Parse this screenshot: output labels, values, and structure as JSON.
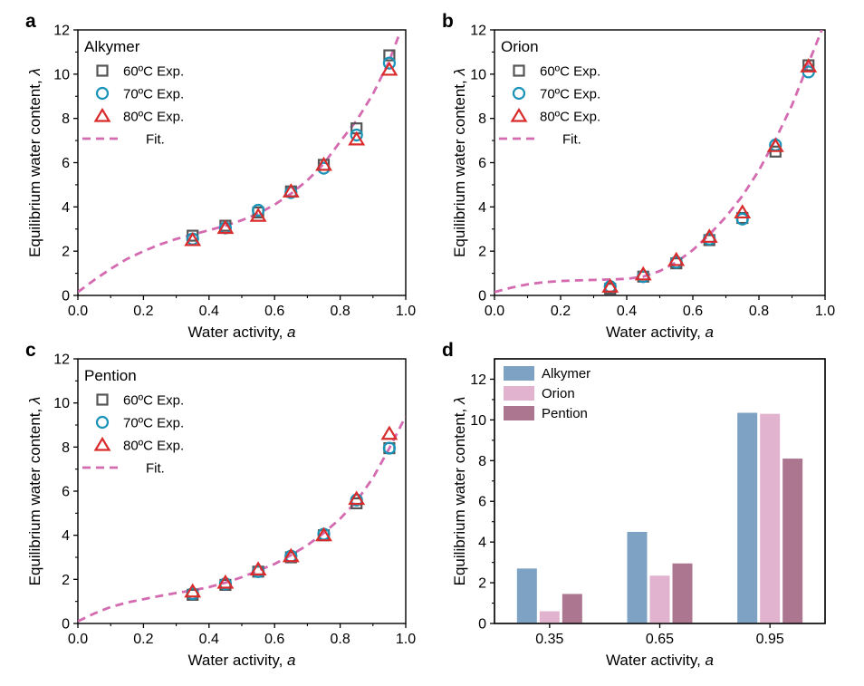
{
  "colors": {
    "exp_60": "#555555",
    "exp_70": "#1a93b8",
    "exp_80": "#d92b2b",
    "fit": "#d46bb0",
    "bar_alkymer": "#7da2c4",
    "bar_orion": "#e2b3cf",
    "bar_pention": "#ad7690"
  },
  "chart_data": [
    {
      "id": "a",
      "type": "scatter",
      "panel_label": "a",
      "title": "Alkymer",
      "xlabel": "Water activity, ",
      "xlabel_var": "a",
      "ylabel": "Equilibrium water content, ",
      "ylabel_var": "λ",
      "xlim": [
        0,
        1.0
      ],
      "ylim": [
        0,
        12
      ],
      "xticks": [
        "0.0",
        "0.2",
        "0.4",
        "0.6",
        "0.8",
        "1.0"
      ],
      "yticks": [
        "0",
        "2",
        "4",
        "6",
        "8",
        "10",
        "12"
      ],
      "legend": [
        "60ºC Exp.",
        "70ºC Exp.",
        "80ºC Exp.",
        "Fit."
      ],
      "series": [
        {
          "name": "60ºC Exp.",
          "marker": "square",
          "x": [
            0.35,
            0.45,
            0.55,
            0.65,
            0.75,
            0.85,
            0.95
          ],
          "y": [
            2.7,
            3.15,
            3.75,
            4.7,
            5.9,
            7.55,
            10.85
          ]
        },
        {
          "name": "70ºC Exp.",
          "marker": "circle",
          "x": [
            0.35,
            0.45,
            0.55,
            0.65,
            0.75,
            0.85,
            0.95
          ],
          "y": [
            2.55,
            3.05,
            3.85,
            4.65,
            5.75,
            7.25,
            10.5
          ]
        },
        {
          "name": "80ºC Exp.",
          "marker": "triangle",
          "x": [
            0.35,
            0.45,
            0.55,
            0.65,
            0.75,
            0.85,
            0.95
          ],
          "y": [
            2.5,
            3.05,
            3.6,
            4.7,
            5.9,
            7.05,
            10.2
          ]
        }
      ],
      "fit": {
        "name": "Fit.",
        "x": [
          0,
          0.05,
          0.1,
          0.15,
          0.2,
          0.25,
          0.3,
          0.35,
          0.4,
          0.45,
          0.5,
          0.55,
          0.6,
          0.65,
          0.7,
          0.75,
          0.8,
          0.85,
          0.9,
          0.95,
          0.98
        ],
        "y": [
          0.15,
          0.7,
          1.2,
          1.65,
          2.0,
          2.3,
          2.55,
          2.75,
          2.95,
          3.15,
          3.4,
          3.7,
          4.1,
          4.6,
          5.2,
          5.95,
          6.95,
          7.9,
          9.1,
          10.6,
          11.8
        ]
      }
    },
    {
      "id": "b",
      "type": "scatter",
      "panel_label": "b",
      "title": "Orion",
      "xlabel": "Water activity, ",
      "xlabel_var": "a",
      "ylabel": "Equilibrium water content, ",
      "ylabel_var": "λ",
      "xlim": [
        0,
        1.0
      ],
      "ylim": [
        0,
        12
      ],
      "xticks": [
        "0.0",
        "0.2",
        "0.4",
        "0.6",
        "0.8",
        "1.0"
      ],
      "yticks": [
        "0",
        "2",
        "4",
        "6",
        "8",
        "10",
        "12"
      ],
      "legend": [
        "60ºC Exp.",
        "70ºC Exp.",
        "80ºC Exp.",
        "Fit."
      ],
      "series": [
        {
          "name": "60ºC Exp.",
          "marker": "square",
          "x": [
            0.35,
            0.45,
            0.55,
            0.65,
            0.75,
            0.85,
            0.95
          ],
          "y": [
            0.3,
            0.85,
            1.45,
            2.5,
            3.5,
            6.5,
            10.4
          ]
        },
        {
          "name": "70ºC Exp.",
          "marker": "circle",
          "x": [
            0.35,
            0.45,
            0.55,
            0.65,
            0.75,
            0.85,
            0.95
          ],
          "y": [
            0.4,
            0.85,
            1.5,
            2.55,
            3.45,
            6.8,
            10.1
          ]
        },
        {
          "name": "80ºC Exp.",
          "marker": "triangle",
          "x": [
            0.35,
            0.45,
            0.55,
            0.65,
            0.75,
            0.85,
            0.95
          ],
          "y": [
            0.4,
            0.95,
            1.6,
            2.65,
            3.75,
            6.75,
            10.35
          ]
        }
      ],
      "fit": {
        "name": "Fit.",
        "x": [
          0,
          0.05,
          0.1,
          0.15,
          0.2,
          0.25,
          0.3,
          0.35,
          0.4,
          0.45,
          0.5,
          0.55,
          0.6,
          0.65,
          0.7,
          0.75,
          0.8,
          0.85,
          0.9,
          0.95,
          0.99
        ],
        "y": [
          0.15,
          0.35,
          0.5,
          0.6,
          0.65,
          0.68,
          0.7,
          0.72,
          0.75,
          0.85,
          1.1,
          1.5,
          2.05,
          2.75,
          3.55,
          4.5,
          5.65,
          7.05,
          8.6,
          10.5,
          12.0
        ]
      }
    },
    {
      "id": "c",
      "type": "scatter",
      "panel_label": "c",
      "title": "Pention",
      "xlabel": "Water activity, ",
      "xlabel_var": "a",
      "ylabel": "Equilibrium water content, ",
      "ylabel_var": "λ",
      "xlim": [
        0,
        1.0
      ],
      "ylim": [
        0,
        12
      ],
      "xticks": [
        "0.0",
        "0.2",
        "0.4",
        "0.6",
        "0.8",
        "1.0"
      ],
      "yticks": [
        "0",
        "2",
        "4",
        "6",
        "8",
        "10",
        "12"
      ],
      "legend": [
        "60ºC Exp.",
        "70ºC Exp.",
        "80ºC Exp.",
        "Fit."
      ],
      "series": [
        {
          "name": "60ºC Exp.",
          "marker": "square",
          "x": [
            0.35,
            0.45,
            0.55,
            0.65,
            0.75,
            0.85,
            0.95
          ],
          "y": [
            1.3,
            1.75,
            2.35,
            3.0,
            4.0,
            5.45,
            7.95
          ]
        },
        {
          "name": "70ºC Exp.",
          "marker": "circle",
          "x": [
            0.35,
            0.45,
            0.55,
            0.65,
            0.75,
            0.85,
            0.95
          ],
          "y": [
            1.35,
            1.8,
            2.35,
            3.05,
            4.05,
            5.6,
            7.95
          ]
        },
        {
          "name": "80ºC Exp.",
          "marker": "triangle",
          "x": [
            0.35,
            0.45,
            0.55,
            0.65,
            0.75,
            0.85,
            0.95
          ],
          "y": [
            1.45,
            1.85,
            2.45,
            3.05,
            4.0,
            5.65,
            8.6
          ]
        }
      ],
      "fit": {
        "name": "Fit.",
        "x": [
          0,
          0.05,
          0.1,
          0.15,
          0.2,
          0.25,
          0.3,
          0.35,
          0.4,
          0.45,
          0.5,
          0.55,
          0.6,
          0.65,
          0.7,
          0.75,
          0.8,
          0.85,
          0.9,
          0.95,
          1.0
        ],
        "y": [
          0.1,
          0.45,
          0.75,
          0.95,
          1.1,
          1.25,
          1.38,
          1.5,
          1.65,
          1.85,
          2.1,
          2.4,
          2.7,
          3.1,
          3.55,
          4.1,
          4.75,
          5.55,
          6.6,
          7.95,
          9.4
        ]
      }
    },
    {
      "id": "d",
      "type": "bar",
      "panel_label": "d",
      "xlabel": "Water activity, ",
      "xlabel_var": "a",
      "ylabel": "Equilibrium water content, ",
      "ylabel_var": "λ",
      "ylim": [
        0,
        13
      ],
      "yticks": [
        "0",
        "2",
        "4",
        "6",
        "8",
        "10",
        "12"
      ],
      "categories": [
        "0.35",
        "0.65",
        "0.95"
      ],
      "series": [
        {
          "name": "Alkymer",
          "values": [
            2.7,
            4.5,
            10.35
          ]
        },
        {
          "name": "Orion",
          "values": [
            0.6,
            2.35,
            10.3
          ]
        },
        {
          "name": "Pention",
          "values": [
            1.45,
            2.95,
            8.1
          ]
        }
      ]
    }
  ]
}
